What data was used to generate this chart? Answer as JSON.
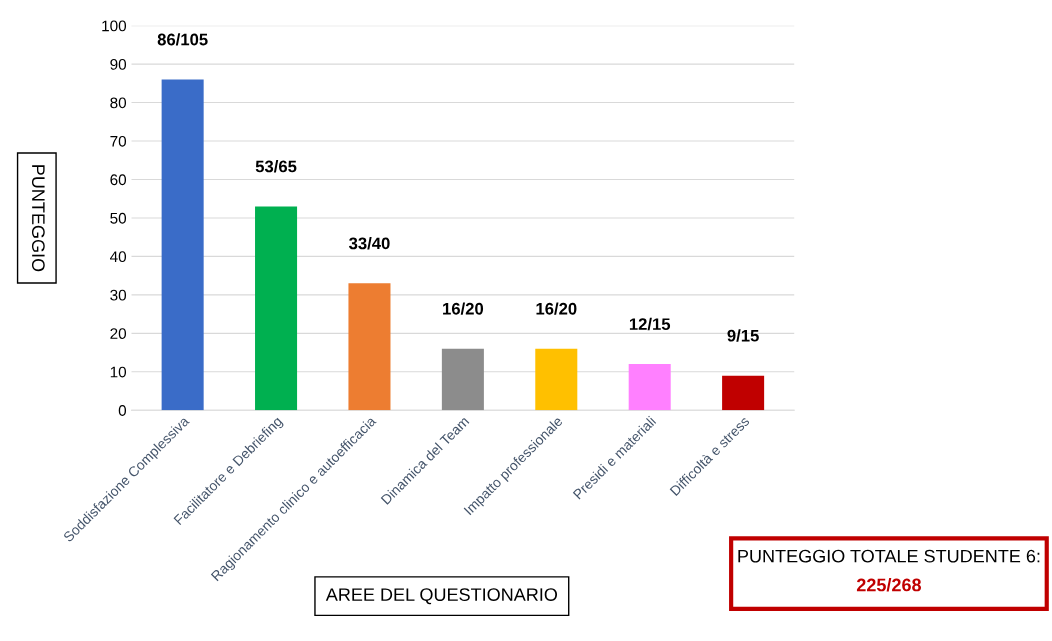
{
  "chart_data": {
    "type": "bar",
    "xlabel": "AREE DEL QUESTIONARIO",
    "ylabel": "PUNTEGGIO",
    "categories": [
      "Soddisfazione Complessiva",
      "Facilitatore e Debriefing",
      "Ragionamento clinico e autoefficacia",
      "Dinamica del Team",
      "Impatto professionale",
      "Presidi e materiali",
      "Difficoltà e stress"
    ],
    "values": [
      86,
      53,
      33,
      16,
      16,
      12,
      9
    ],
    "colors": [
      "#3a6cc8",
      "#00b050",
      "#ed7d31",
      "#8c8c8c",
      "#ffc000",
      "#ff80ff",
      "#c00000"
    ],
    "value_labels": [
      "86/105",
      "53/65",
      "33/40",
      "16/20",
      "16/20",
      "12/15",
      "9/15"
    ],
    "ylim": [
      0,
      100
    ],
    "yticks": [
      0,
      10,
      20,
      30,
      40,
      50,
      60,
      70,
      80,
      90,
      100
    ],
    "grid": "y",
    "annotations": [
      "PUNTEGGIO TOTALE STUDENTE 6:",
      "225/268"
    ]
  }
}
